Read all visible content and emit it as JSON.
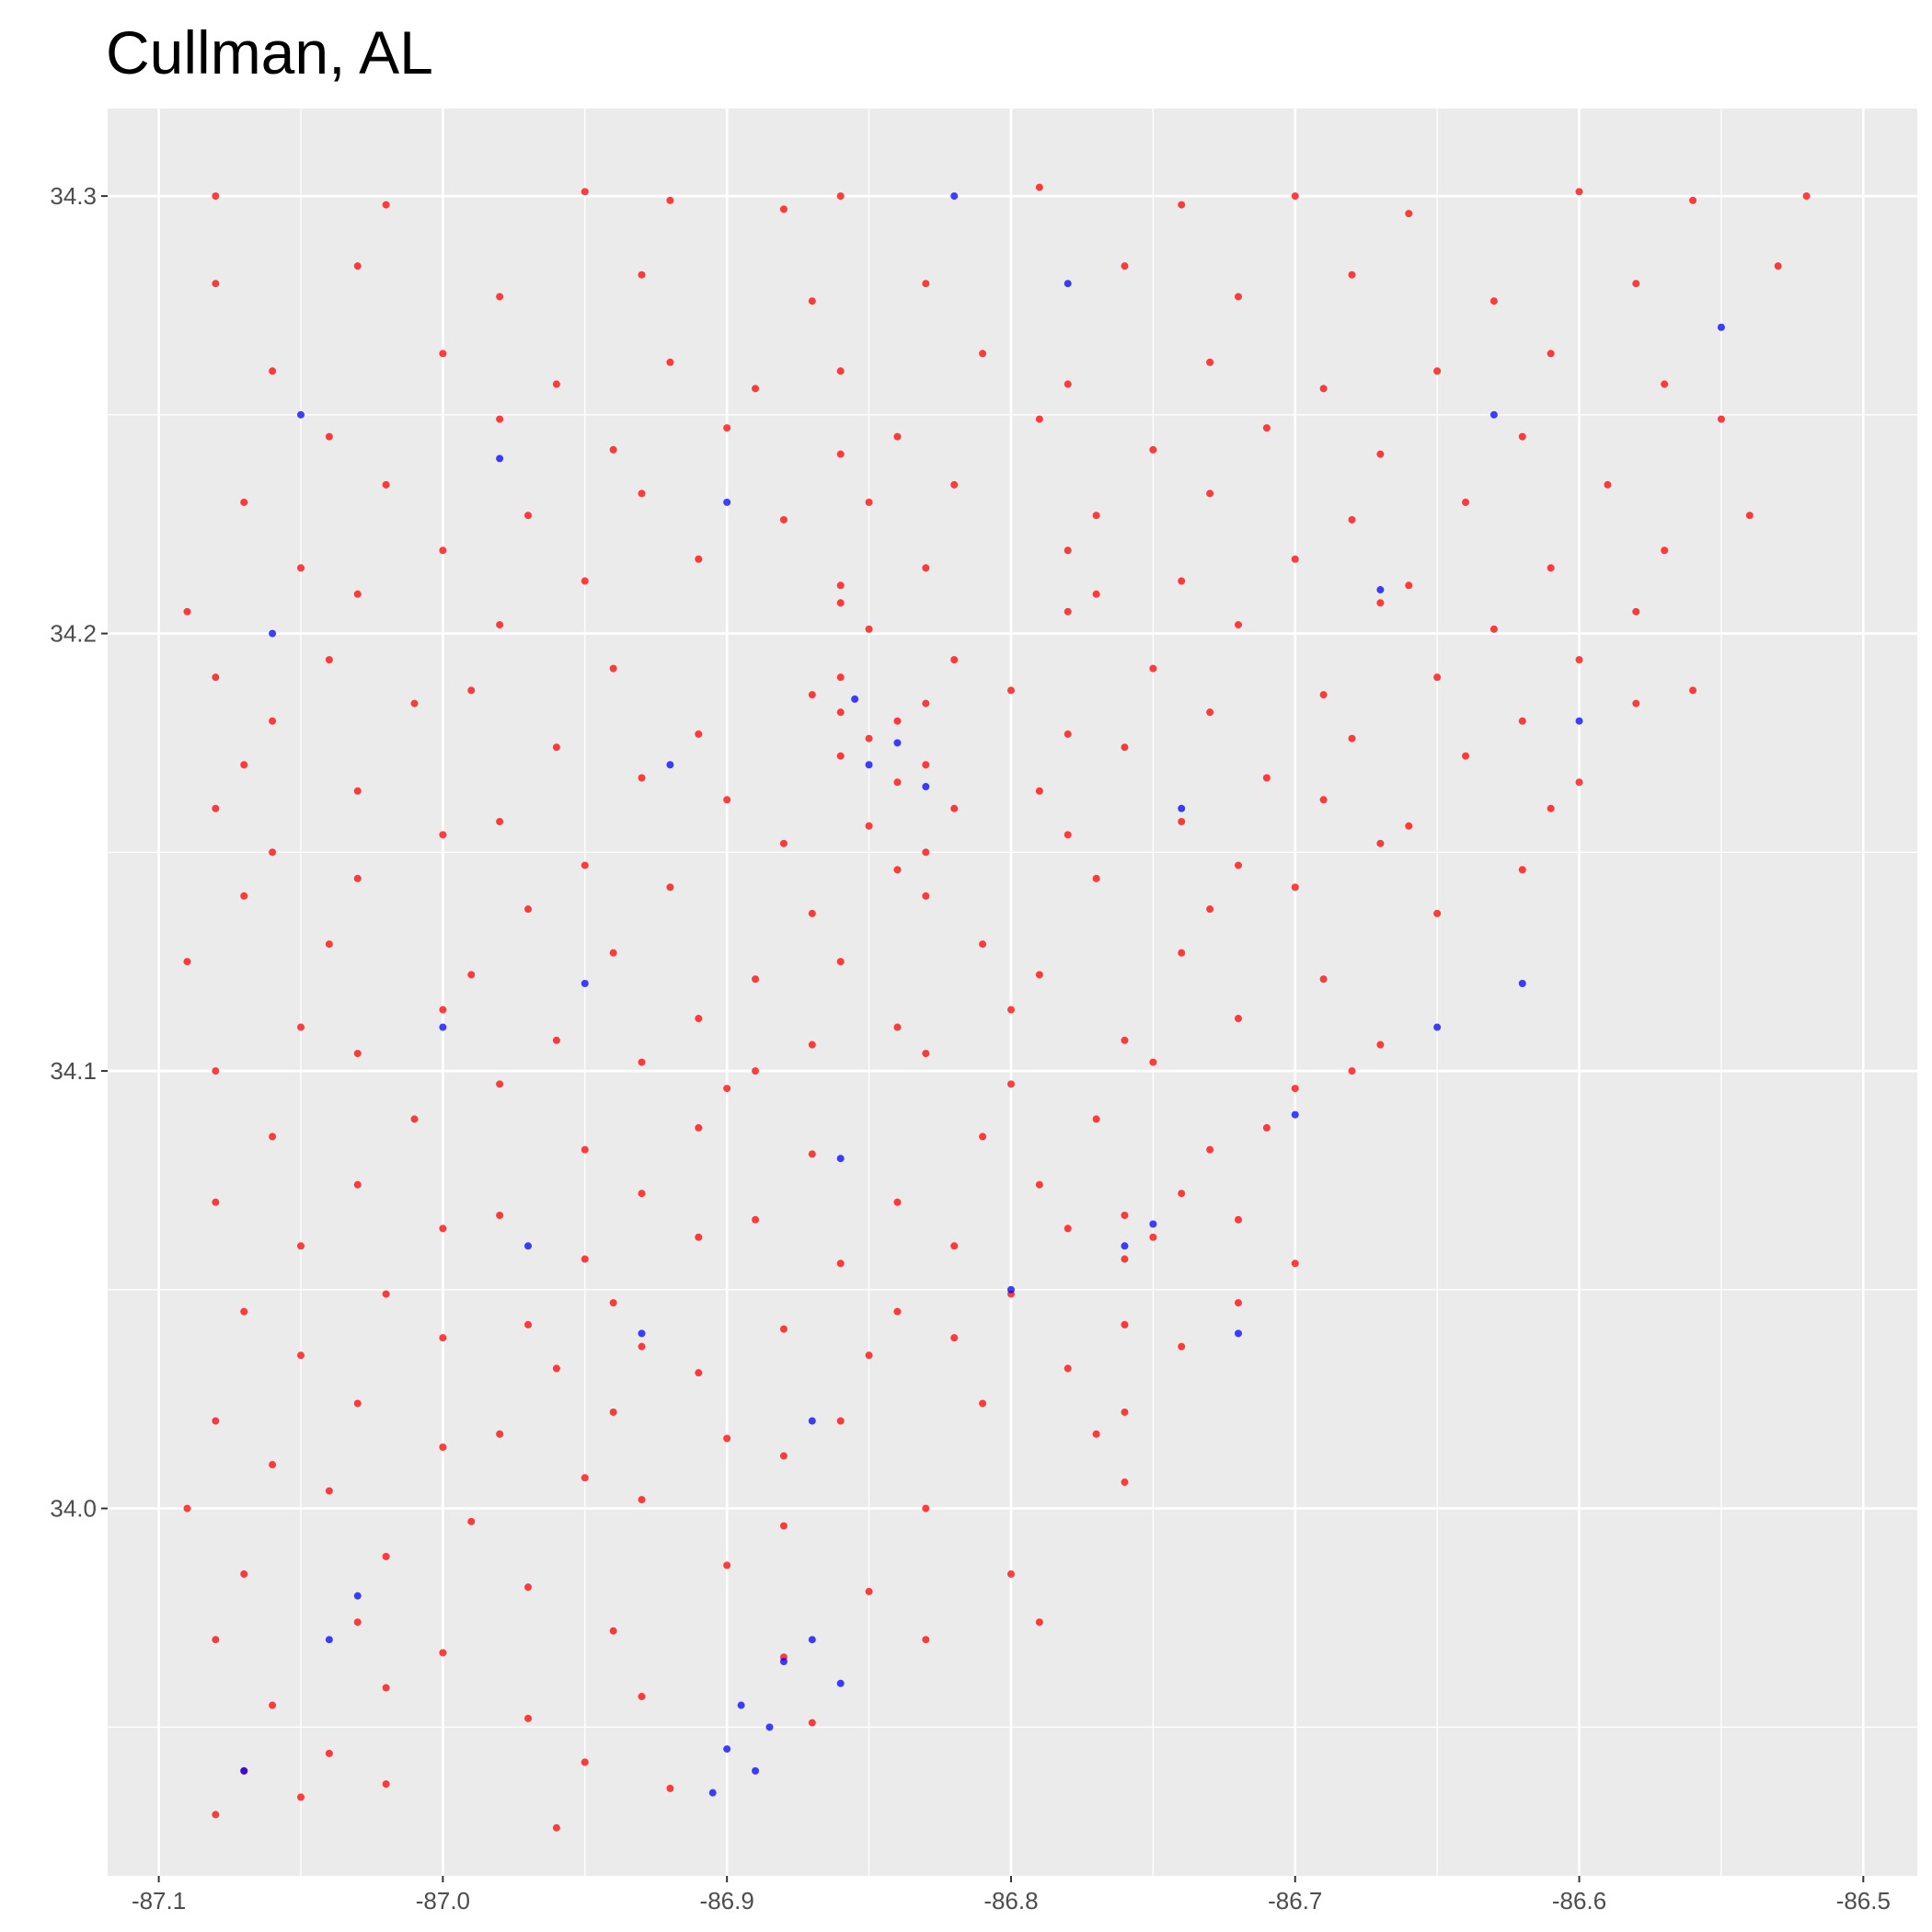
{
  "chart_data": {
    "type": "scatter",
    "title": "Cullman, AL",
    "xlim": [
      -87.118,
      -86.481
    ],
    "ylim": [
      33.916,
      34.32
    ],
    "xticks": [
      -87.1,
      {
        "value": -87,
        "label": "-87.0"
      },
      -86.9,
      -86.8,
      -86.7,
      -86.6,
      -86.5
    ],
    "yticks": [
      {
        "value": 34,
        "label": "34.0"
      },
      34.1,
      34.2,
      34.3
    ],
    "grid": true,
    "series": [
      {
        "color": "#ff0000",
        "x": [
          -87.08,
          -87.02,
          -86.95,
          -86.92,
          -86.88,
          -86.86,
          -86.79,
          -86.74,
          -86.7,
          -86.66,
          -86.6,
          -86.56,
          -86.52,
          -87.08,
          -87.03,
          -86.98,
          -86.93,
          -86.87,
          -86.83,
          -86.76,
          -86.72,
          -86.68,
          -86.63,
          -86.58,
          -86.53,
          -87.06,
          -87.0,
          -86.96,
          -86.92,
          -86.89,
          -86.86,
          -86.81,
          -86.78,
          -86.73,
          -86.69,
          -86.65,
          -86.61,
          -86.57,
          -87.04,
          -86.98,
          -86.94,
          -86.9,
          -86.86,
          -86.84,
          -86.79,
          -86.75,
          -86.71,
          -86.67,
          -86.62,
          -86.55,
          -87.07,
          -87.02,
          -86.97,
          -86.93,
          -86.88,
          -86.85,
          -86.82,
          -86.77,
          -86.73,
          -86.68,
          -86.64,
          -86.59,
          -86.54,
          -87.05,
          -87.0,
          -86.95,
          -86.91,
          -86.86,
          -86.83,
          -86.78,
          -86.74,
          -86.7,
          -86.66,
          -86.61,
          -86.57,
          -87.09,
          -87.03,
          -86.98,
          -86.86,
          -86.85,
          -86.78,
          -86.77,
          -86.72,
          -86.67,
          -86.63,
          -86.58,
          -87.08,
          -87.04,
          -86.99,
          -86.94,
          -86.87,
          -86.86,
          -86.82,
          -86.8,
          -86.75,
          -86.69,
          -86.65,
          -86.6,
          -86.56,
          -87.06,
          -87.01,
          -86.91,
          -86.86,
          -86.85,
          -86.84,
          -86.83,
          -86.78,
          -86.73,
          -86.68,
          -86.62,
          -86.58,
          -87.07,
          -86.96,
          -86.93,
          -86.86,
          -86.84,
          -86.83,
          -86.76,
          -86.71,
          -86.64,
          -86.6,
          -87.08,
          -87.03,
          -86.98,
          -86.9,
          -86.85,
          -86.82,
          -86.79,
          -86.74,
          -86.69,
          -86.66,
          -86.61,
          -87.06,
          -87.0,
          -86.95,
          -86.88,
          -86.84,
          -86.83,
          -86.78,
          -86.72,
          -86.67,
          -86.62,
          -87.07,
          -87.03,
          -86.97,
          -86.92,
          -86.87,
          -86.83,
          -86.77,
          -86.73,
          -86.7,
          -86.65,
          -87.09,
          -87.04,
          -86.99,
          -86.94,
          -86.89,
          -86.86,
          -86.81,
          -86.79,
          -86.74,
          -86.69,
          -87.05,
          -87.0,
          -86.96,
          -86.91,
          -86.87,
          -86.84,
          -86.8,
          -86.76,
          -86.72,
          -86.67,
          -87.08,
          -87.03,
          -86.98,
          -86.93,
          -86.9,
          -86.89,
          -86.83,
          -86.8,
          -86.75,
          -86.7,
          -86.68,
          -87.06,
          -87.01,
          -86.95,
          -86.91,
          -86.87,
          -86.81,
          -86.77,
          -86.73,
          -86.71,
          -87.08,
          -87.03,
          -86.98,
          -86.93,
          -86.89,
          -86.84,
          -86.79,
          -86.76,
          -86.74,
          -86.72,
          -87.05,
          -87.0,
          -86.95,
          -86.91,
          -86.86,
          -86.82,
          -86.78,
          -86.76,
          -86.75,
          -86.7,
          -87.07,
          -87.02,
          -86.97,
          -86.94,
          -86.88,
          -86.84,
          -86.8,
          -86.76,
          -86.72,
          -87.05,
          -87.0,
          -86.96,
          -86.93,
          -86.91,
          -86.85,
          -86.82,
          -86.78,
          -86.74,
          -87.08,
          -87.03,
          -86.98,
          -86.94,
          -86.9,
          -86.86,
          -86.81,
          -86.77,
          -86.76,
          -87.06,
          -87.0,
          -86.95,
          -86.88,
          -86.76,
          -87.09,
          -87.04,
          -86.99,
          -86.93,
          -86.88,
          -86.83,
          -87.07,
          -87.02,
          -86.97,
          -86.9,
          -86.85,
          -86.8,
          -87.08,
          -87.03,
          -87.0,
          -86.94,
          -86.88,
          -86.83,
          -86.79,
          -87.06,
          -87.02,
          -86.97,
          -86.93,
          -86.87,
          -87.07,
          -87.04,
          -87.02,
          -86.95,
          -86.92,
          -87.08,
          -87.05,
          -86.96
        ],
        "values": [
          34.3,
          34.298,
          34.301,
          34.299,
          34.297,
          34.3,
          34.302,
          34.298,
          34.3,
          34.296,
          34.301,
          34.299,
          34.3,
          34.28,
          34.284,
          34.277,
          34.282,
          34.276,
          34.28,
          34.284,
          34.277,
          34.282,
          34.276,
          34.28,
          34.284,
          34.26,
          34.264,
          34.257,
          34.262,
          34.256,
          34.26,
          34.264,
          34.257,
          34.262,
          34.256,
          34.26,
          34.264,
          34.257,
          34.245,
          34.249,
          34.242,
          34.247,
          34.241,
          34.245,
          34.249,
          34.242,
          34.247,
          34.241,
          34.245,
          34.249,
          34.23,
          34.234,
          34.227,
          34.232,
          34.226,
          34.23,
          34.234,
          34.227,
          34.232,
          34.226,
          34.23,
          34.234,
          34.227,
          34.215,
          34.219,
          34.212,
          34.217,
          34.211,
          34.215,
          34.219,
          34.212,
          34.217,
          34.211,
          34.215,
          34.219,
          34.205,
          34.209,
          34.202,
          34.207,
          34.201,
          34.205,
          34.209,
          34.202,
          34.207,
          34.201,
          34.205,
          34.19,
          34.194,
          34.187,
          34.192,
          34.186,
          34.19,
          34.194,
          34.187,
          34.192,
          34.186,
          34.19,
          34.194,
          34.187,
          34.18,
          34.184,
          34.177,
          34.182,
          34.176,
          34.18,
          34.184,
          34.177,
          34.182,
          34.176,
          34.18,
          34.184,
          34.17,
          34.174,
          34.167,
          34.172,
          34.166,
          34.17,
          34.174,
          34.167,
          34.172,
          34.166,
          34.16,
          34.164,
          34.157,
          34.162,
          34.156,
          34.16,
          34.164,
          34.157,
          34.162,
          34.156,
          34.16,
          34.15,
          34.154,
          34.147,
          34.152,
          34.146,
          34.15,
          34.154,
          34.147,
          34.152,
          34.146,
          34.14,
          34.144,
          34.137,
          34.142,
          34.136,
          34.14,
          34.144,
          34.137,
          34.142,
          34.136,
          34.125,
          34.129,
          34.122,
          34.127,
          34.121,
          34.125,
          34.129,
          34.122,
          34.127,
          34.121,
          34.11,
          34.114,
          34.107,
          34.112,
          34.106,
          34.11,
          34.114,
          34.107,
          34.112,
          34.106,
          34.1,
          34.104,
          34.097,
          34.102,
          34.096,
          34.1,
          34.104,
          34.097,
          34.102,
          34.096,
          34.1,
          34.085,
          34.089,
          34.082,
          34.087,
          34.081,
          34.085,
          34.089,
          34.082,
          34.087,
          34.07,
          34.074,
          34.067,
          34.072,
          34.066,
          34.07,
          34.074,
          34.067,
          34.072,
          34.066,
          34.06,
          34.064,
          34.057,
          34.062,
          34.056,
          34.06,
          34.064,
          34.057,
          34.062,
          34.056,
          34.045,
          34.049,
          34.042,
          34.047,
          34.041,
          34.045,
          34.049,
          34.042,
          34.047,
          34.035,
          34.039,
          34.032,
          34.037,
          34.031,
          34.035,
          34.039,
          34.032,
          34.037,
          34.02,
          34.024,
          34.017,
          34.022,
          34.016,
          34.02,
          34.024,
          34.017,
          34.022,
          34.01,
          34.014,
          34.007,
          34.012,
          34.006,
          34.0,
          34.004,
          33.997,
          34.002,
          33.996,
          34.0,
          33.985,
          33.989,
          33.982,
          33.987,
          33.981,
          33.985,
          33.97,
          33.974,
          33.967,
          33.972,
          33.966,
          33.97,
          33.974,
          33.955,
          33.959,
          33.952,
          33.957,
          33.951,
          33.94,
          33.944,
          33.937,
          33.942,
          33.936,
          33.93,
          33.934,
          33.927
        ]
      },
      {
        "color": "#0000ff",
        "x": [
          -86.9,
          -86.89,
          -86.905,
          -86.885,
          -86.895,
          -86.88,
          -86.87,
          -86.86,
          -86.85,
          -86.84,
          -86.855,
          -86.83,
          -86.76,
          -86.75,
          -87.03,
          -87.04,
          -87.06,
          -87.05,
          -86.67,
          -86.6,
          -86.55,
          -86.65,
          -86.7,
          -86.72,
          -86.95,
          -86.97,
          -87.0,
          -86.82,
          -86.78,
          -86.9,
          -86.92,
          -86.62,
          -86.74,
          -86.8,
          -86.87,
          -87.07,
          -86.93,
          -86.63,
          -86.86,
          -86.98
        ],
        "values": [
          33.945,
          33.94,
          33.935,
          33.95,
          33.955,
          33.965,
          33.97,
          33.96,
          34.17,
          34.175,
          34.185,
          34.165,
          34.06,
          34.065,
          33.98,
          33.97,
          34.2,
          34.25,
          34.21,
          34.18,
          34.27,
          34.11,
          34.09,
          34.04,
          34.12,
          34.06,
          34.11,
          34.3,
          34.28,
          34.23,
          34.17,
          34.12,
          34.16,
          34.05,
          34.02,
          33.94,
          34.04,
          34.25,
          34.08,
          34.24
        ]
      }
    ]
  }
}
